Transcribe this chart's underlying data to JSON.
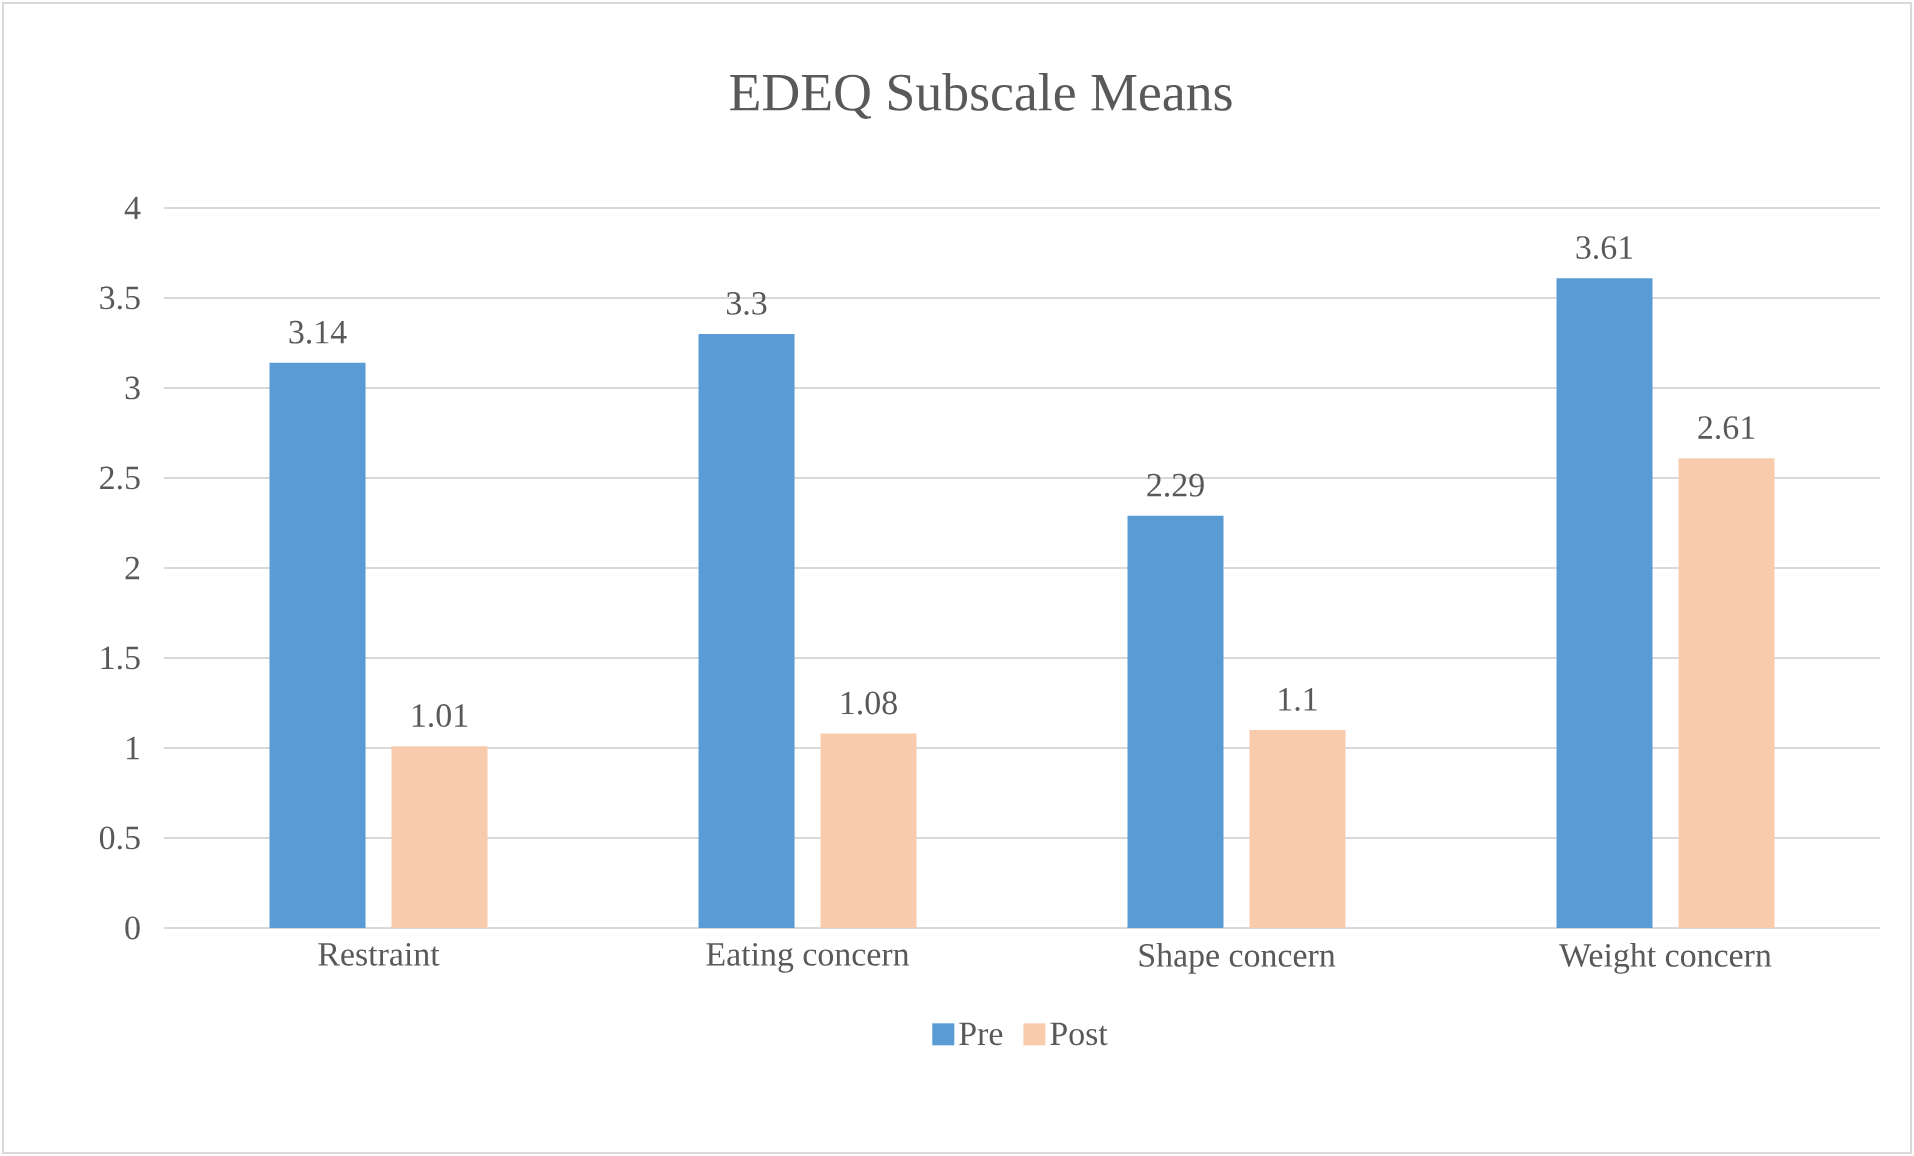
{
  "chart_data": {
    "type": "bar",
    "title": "EDEQ Subscale Means",
    "categories": [
      "Restraint",
      "Eating concern",
      "Shape concern",
      "Weight concern"
    ],
    "series": [
      {
        "name": "Pre",
        "color": "#5b9bd5",
        "values": [
          3.14,
          3.3,
          2.29,
          3.61
        ]
      },
      {
        "name": "Post",
        "color": "#f8cbad",
        "values": [
          1.01,
          1.08,
          1.1,
          2.61
        ]
      }
    ],
    "ylim": [
      0,
      4
    ],
    "yticks": [
      0,
      0.5,
      1,
      1.5,
      2,
      2.5,
      3,
      3.5,
      4
    ],
    "grid": "y",
    "legend": "bottom",
    "data_labels": true
  }
}
